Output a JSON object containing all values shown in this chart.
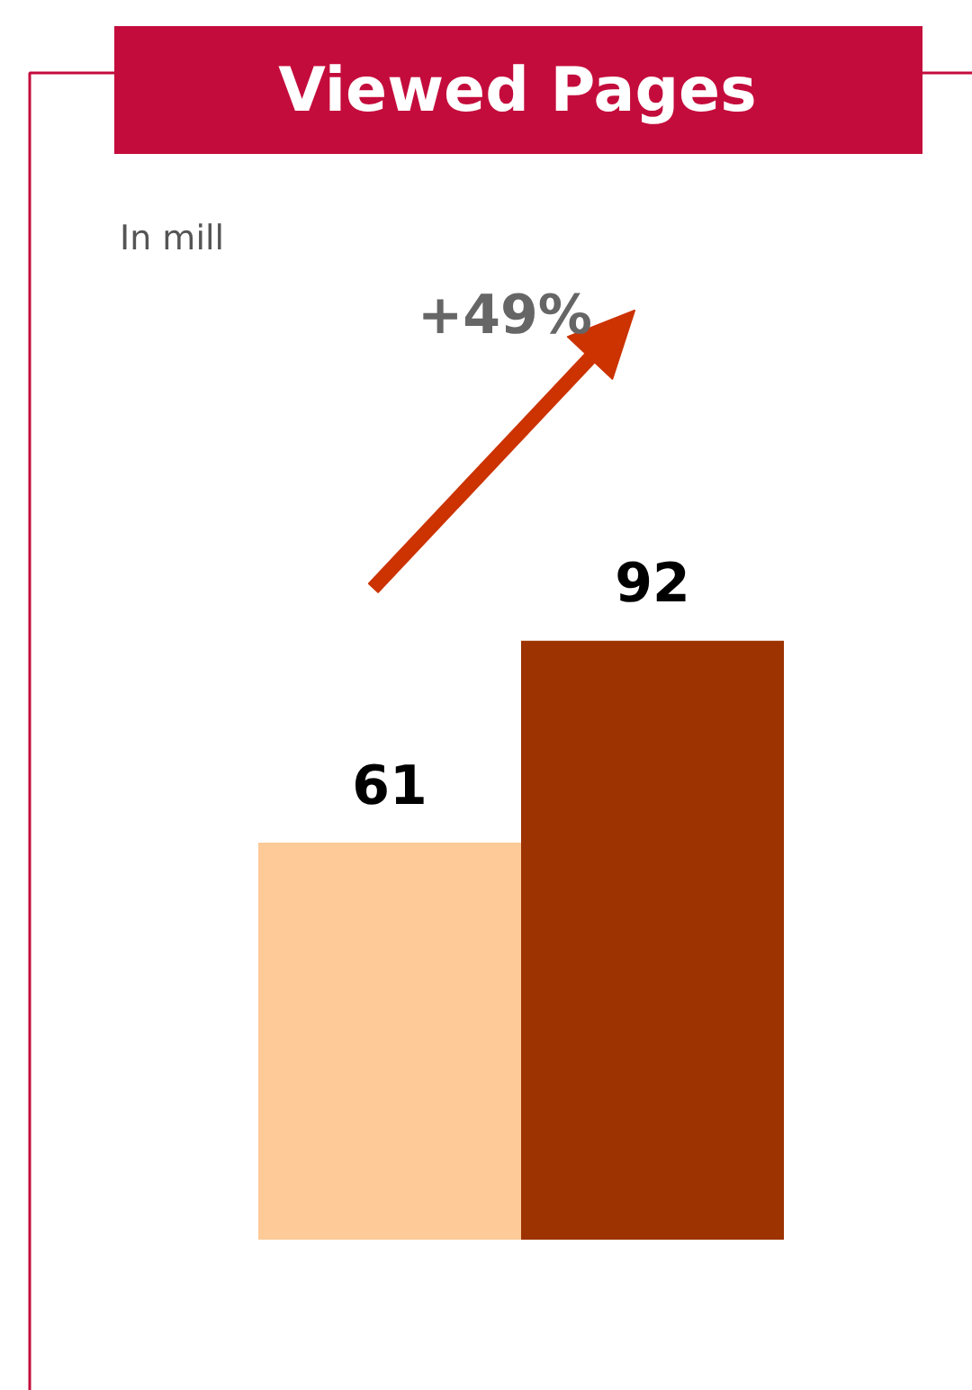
{
  "chart_data": {
    "type": "bar",
    "title": "Viewed Pages",
    "subtitle": "In mill",
    "categories": [
      null,
      null
    ],
    "values": [
      61,
      92
    ],
    "colors": [
      "#fdca98",
      "#9c3300"
    ],
    "data_labels": true,
    "annotations": [
      "+49%"
    ]
  }
}
